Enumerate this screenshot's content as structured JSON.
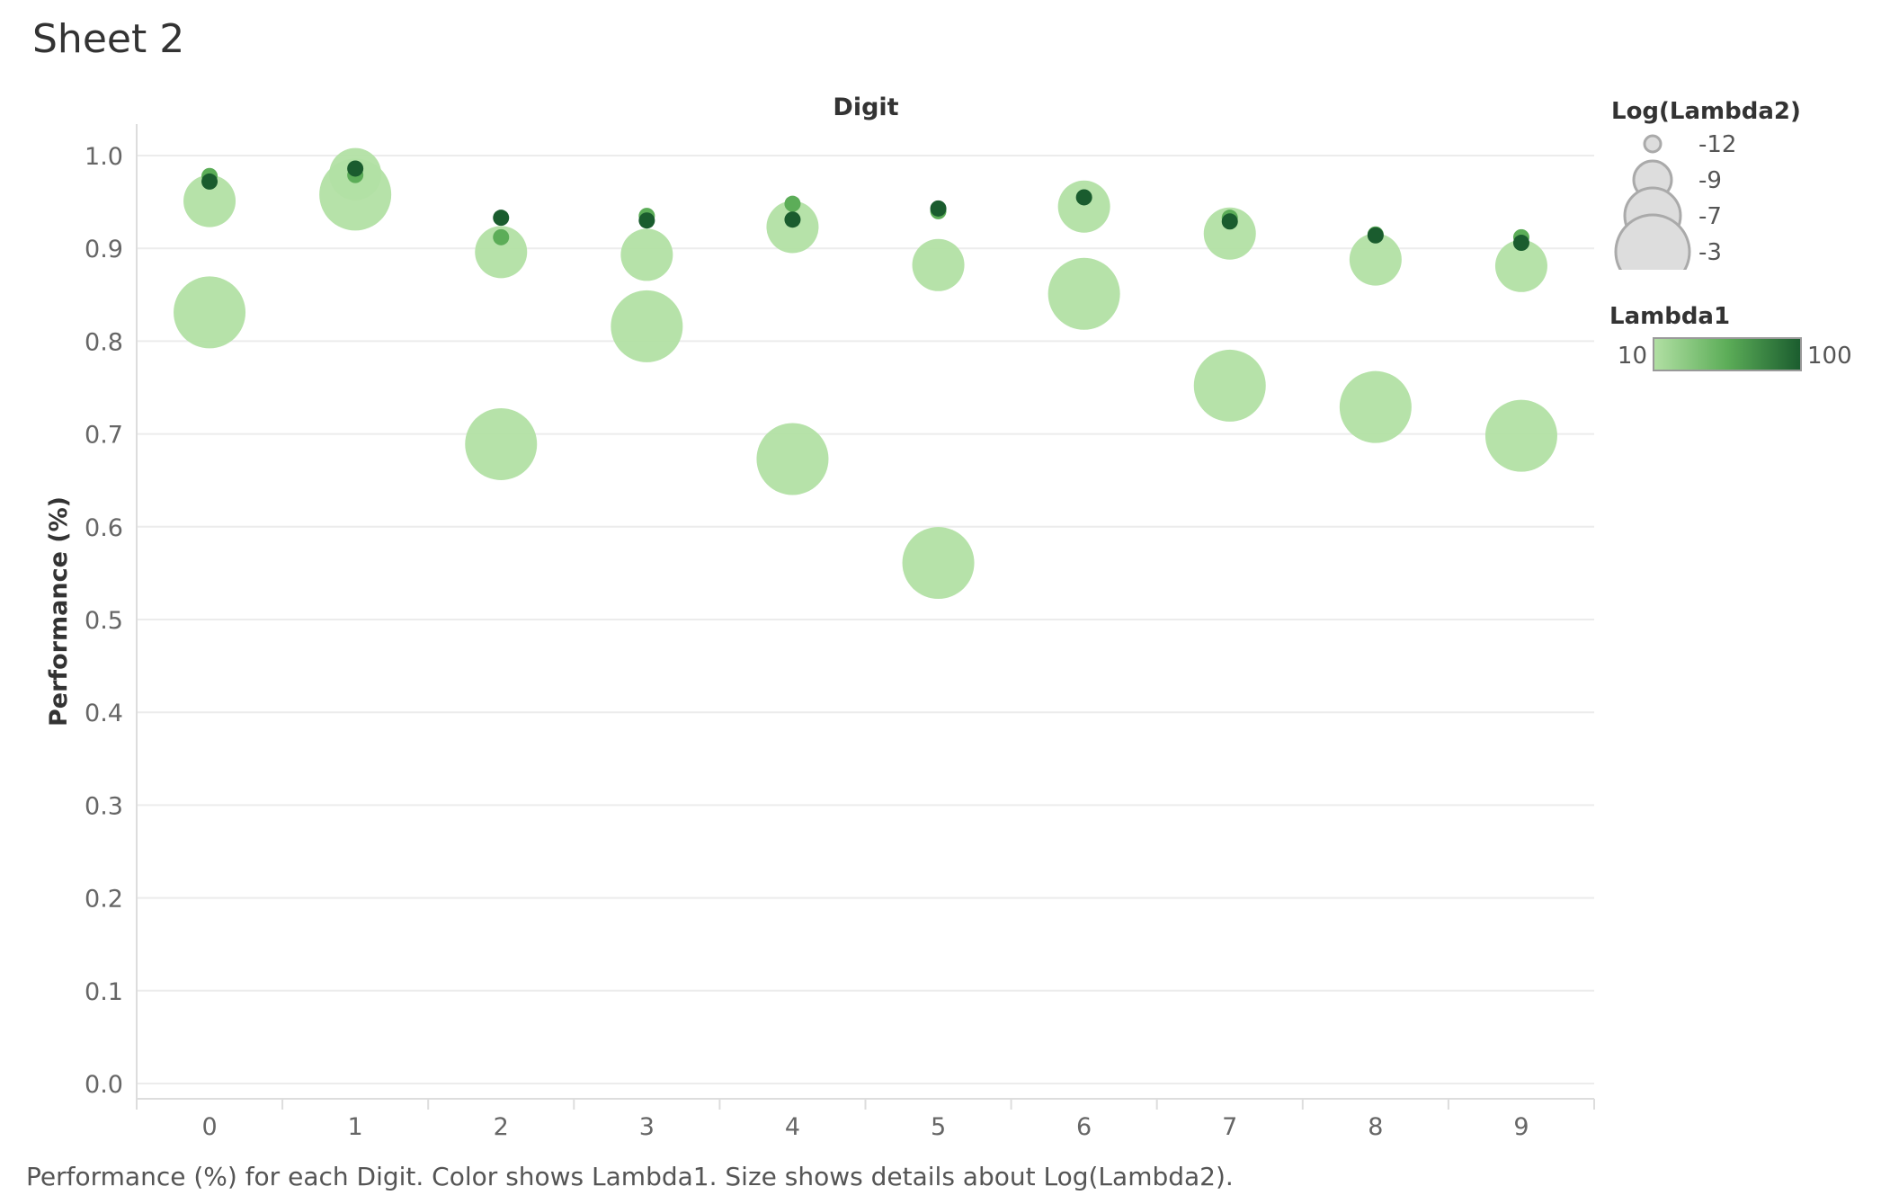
{
  "sheet": {
    "title": "Sheet 2"
  },
  "caption": "Performance (%) for each Digit.  Color shows Lambda1.  Size shows details about Log(Lambda2).",
  "chart_data": {
    "type": "scatter",
    "title": "Digit",
    "xlabel": "",
    "ylabel": "Performance (%)",
    "categories": [
      "0",
      "1",
      "2",
      "3",
      "4",
      "5",
      "6",
      "7",
      "8",
      "9"
    ],
    "y_ticks": [
      "0.0",
      "0.1",
      "0.2",
      "0.3",
      "0.4",
      "0.5",
      "0.6",
      "0.7",
      "0.8",
      "0.9",
      "1.0"
    ],
    "ylim": [
      0.0,
      1.05
    ],
    "grid": true,
    "colors": {
      "light": "#b2e0a4",
      "mid": "#5cad58",
      "dark": "#1a5c2e",
      "gridline": "#ececec",
      "axis": "#dddddd"
    },
    "points": [
      {
        "digit": "0",
        "value": 0.831,
        "log_lambda2": -3,
        "lambda1": 10
      },
      {
        "digit": "0",
        "value": 0.951,
        "log_lambda2": -7,
        "lambda1": 10
      },
      {
        "digit": "0",
        "value": 0.978,
        "log_lambda2": -12,
        "lambda1": 50
      },
      {
        "digit": "0",
        "value": 0.972,
        "log_lambda2": -12,
        "lambda1": 100
      },
      {
        "digit": "1",
        "value": 0.958,
        "log_lambda2": -3,
        "lambda1": 10
      },
      {
        "digit": "1",
        "value": 0.98,
        "log_lambda2": -7,
        "lambda1": 10
      },
      {
        "digit": "1",
        "value": 0.979,
        "log_lambda2": -12,
        "lambda1": 50
      },
      {
        "digit": "1",
        "value": 0.986,
        "log_lambda2": -12,
        "lambda1": 100
      },
      {
        "digit": "2",
        "value": 0.689,
        "log_lambda2": -3,
        "lambda1": 10
      },
      {
        "digit": "2",
        "value": 0.896,
        "log_lambda2": -7,
        "lambda1": 10
      },
      {
        "digit": "2",
        "value": 0.912,
        "log_lambda2": -12,
        "lambda1": 50
      },
      {
        "digit": "2",
        "value": 0.933,
        "log_lambda2": -12,
        "lambda1": 100
      },
      {
        "digit": "3",
        "value": 0.816,
        "log_lambda2": -3,
        "lambda1": 10
      },
      {
        "digit": "3",
        "value": 0.893,
        "log_lambda2": -7,
        "lambda1": 10
      },
      {
        "digit": "3",
        "value": 0.935,
        "log_lambda2": -12,
        "lambda1": 50
      },
      {
        "digit": "3",
        "value": 0.93,
        "log_lambda2": -12,
        "lambda1": 100
      },
      {
        "digit": "4",
        "value": 0.673,
        "log_lambda2": -3,
        "lambda1": 10
      },
      {
        "digit": "4",
        "value": 0.923,
        "log_lambda2": -7,
        "lambda1": 10
      },
      {
        "digit": "4",
        "value": 0.948,
        "log_lambda2": -12,
        "lambda1": 50
      },
      {
        "digit": "4",
        "value": 0.931,
        "log_lambda2": -12,
        "lambda1": 100
      },
      {
        "digit": "5",
        "value": 0.561,
        "log_lambda2": -3,
        "lambda1": 10
      },
      {
        "digit": "5",
        "value": 0.882,
        "log_lambda2": -7,
        "lambda1": 10
      },
      {
        "digit": "5",
        "value": 0.94,
        "log_lambda2": -12,
        "lambda1": 50
      },
      {
        "digit": "5",
        "value": 0.943,
        "log_lambda2": -12,
        "lambda1": 100
      },
      {
        "digit": "6",
        "value": 0.851,
        "log_lambda2": -3,
        "lambda1": 10
      },
      {
        "digit": "6",
        "value": 0.945,
        "log_lambda2": -7,
        "lambda1": 10
      },
      {
        "digit": "6",
        "value": 0.955,
        "log_lambda2": -12,
        "lambda1": 100
      },
      {
        "digit": "7",
        "value": 0.752,
        "log_lambda2": -3,
        "lambda1": 10
      },
      {
        "digit": "7",
        "value": 0.916,
        "log_lambda2": -7,
        "lambda1": 10
      },
      {
        "digit": "7",
        "value": 0.933,
        "log_lambda2": -12,
        "lambda1": 50
      },
      {
        "digit": "7",
        "value": 0.929,
        "log_lambda2": -12,
        "lambda1": 100
      },
      {
        "digit": "8",
        "value": 0.729,
        "log_lambda2": -3,
        "lambda1": 10
      },
      {
        "digit": "8",
        "value": 0.888,
        "log_lambda2": -7,
        "lambda1": 10
      },
      {
        "digit": "8",
        "value": 0.915,
        "log_lambda2": -12,
        "lambda1": 50
      },
      {
        "digit": "8",
        "value": 0.914,
        "log_lambda2": -12,
        "lambda1": 100
      },
      {
        "digit": "9",
        "value": 0.698,
        "log_lambda2": -3,
        "lambda1": 10
      },
      {
        "digit": "9",
        "value": 0.881,
        "log_lambda2": -7,
        "lambda1": 10
      },
      {
        "digit": "9",
        "value": 0.912,
        "log_lambda2": -12,
        "lambda1": 50
      },
      {
        "digit": "9",
        "value": 0.906,
        "log_lambda2": -12,
        "lambda1": 100
      }
    ],
    "size_legend": {
      "title": "Log(Lambda2)",
      "items": [
        {
          "label": "-12",
          "value": -12
        },
        {
          "label": "-9",
          "value": -9
        },
        {
          "label": "-7",
          "value": -7
        },
        {
          "label": "-3",
          "value": -3
        }
      ]
    },
    "color_legend": {
      "title": "Lambda1",
      "min_label": "10",
      "max_label": "100",
      "min": 10,
      "max": 100
    }
  }
}
